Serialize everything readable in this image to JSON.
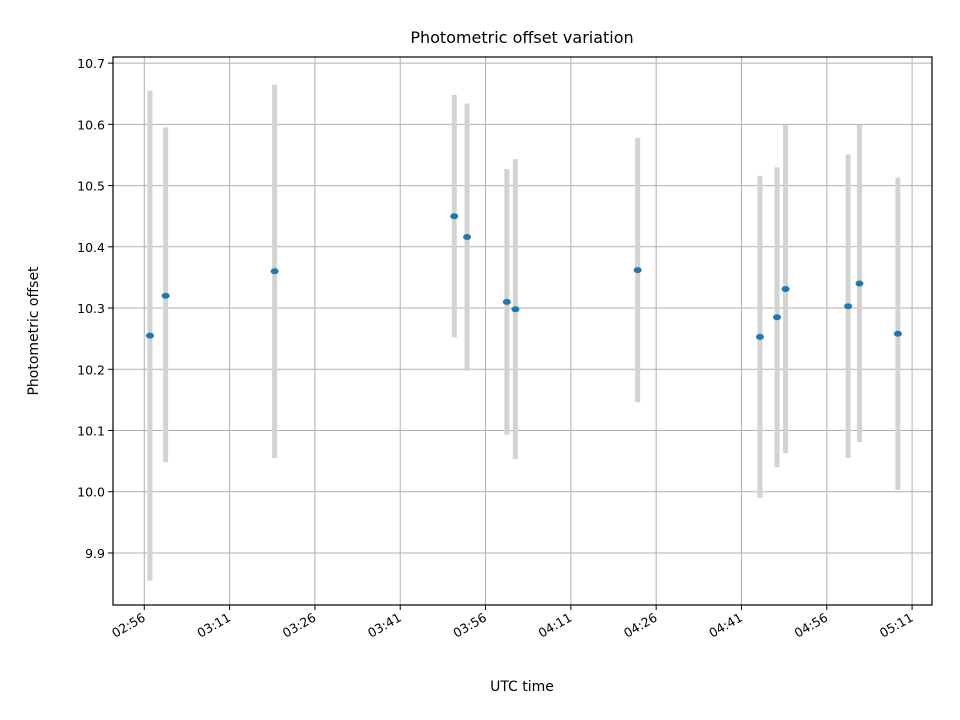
{
  "chart_data": {
    "type": "scatter",
    "title": "Photometric offset variation",
    "xlabel": "UTC time",
    "ylabel": "Photometric offset",
    "x_ticks": [
      "02:56",
      "03:11",
      "03:26",
      "03:41",
      "03:56",
      "04:11",
      "04:26",
      "04:41",
      "04:56",
      "05:11"
    ],
    "xlim": [
      "02:50:30",
      "05:14:30"
    ],
    "ylim": [
      9.815,
      10.71
    ],
    "y_ticks": [
      9.9,
      10.0,
      10.1,
      10.2,
      10.3,
      10.4,
      10.5,
      10.6,
      10.7
    ],
    "grid": true,
    "colors": {
      "points": "#1f77b4",
      "error_bars": "#d3d3d3"
    },
    "series": [
      {
        "points": [
          {
            "x": "02:57:00",
            "y": 10.255,
            "y_low": 9.855,
            "y_high": 10.655
          },
          {
            "x": "02:59:45",
            "y": 10.32,
            "y_low": 10.048,
            "y_high": 10.595
          },
          {
            "x": "03:18:55",
            "y": 10.36,
            "y_low": 10.055,
            "y_high": 10.665
          },
          {
            "x": "03:50:30",
            "y": 10.45,
            "y_low": 10.252,
            "y_high": 10.648
          },
          {
            "x": "03:52:45",
            "y": 10.416,
            "y_low": 10.198,
            "y_high": 10.634
          },
          {
            "x": "03:59:45",
            "y": 10.31,
            "y_low": 10.093,
            "y_high": 10.527
          },
          {
            "x": "04:01:15",
            "y": 10.298,
            "y_low": 10.053,
            "y_high": 10.543
          },
          {
            "x": "04:22:45",
            "y": 10.362,
            "y_low": 10.146,
            "y_high": 10.578
          },
          {
            "x": "04:44:15",
            "y": 10.253,
            "y_low": 9.99,
            "y_high": 10.516
          },
          {
            "x": "04:47:15",
            "y": 10.285,
            "y_low": 10.04,
            "y_high": 10.53
          },
          {
            "x": "04:48:45",
            "y": 10.331,
            "y_low": 10.063,
            "y_high": 10.599
          },
          {
            "x": "04:59:45",
            "y": 10.303,
            "y_low": 10.055,
            "y_high": 10.551
          },
          {
            "x": "05:01:45",
            "y": 10.34,
            "y_low": 10.081,
            "y_high": 10.599
          },
          {
            "x": "05:08:30",
            "y": 10.258,
            "y_low": 10.003,
            "y_high": 10.513
          }
        ]
      }
    ]
  }
}
